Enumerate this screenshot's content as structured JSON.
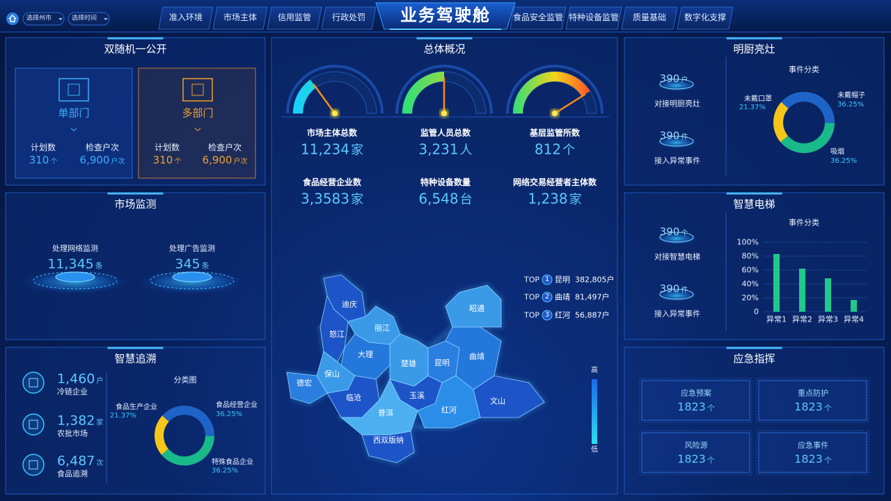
{
  "header": {
    "title": "业务驾驶舱",
    "filters": [
      "选择州市",
      "选择时间"
    ],
    "nav_left": [
      "准入环境",
      "市场主体",
      "信用监管",
      "行政处罚"
    ],
    "nav_right": [
      "食品安全监管",
      "特种设备监管",
      "质量基础",
      "数字化支撑"
    ]
  },
  "random_check": {
    "title": "双随机一公开",
    "cards": [
      {
        "name": "单部门",
        "stats": [
          {
            "label": "计划数",
            "value": "310",
            "unit": "个"
          },
          {
            "label": "检查户次",
            "value": "6,900",
            "unit": "户次"
          }
        ]
      },
      {
        "name": "多部门",
        "stats": [
          {
            "label": "计划数",
            "value": "310",
            "unit": "个"
          },
          {
            "label": "检查户次",
            "value": "6,900",
            "unit": "户次"
          }
        ]
      }
    ]
  },
  "market_monitor": {
    "title": "市场监测",
    "items": [
      {
        "label": "处理网络监测",
        "value": "11,345",
        "unit": "条"
      },
      {
        "label": "处理广告监测",
        "value": "345",
        "unit": "条"
      }
    ]
  },
  "trace": {
    "title": "智慧追溯",
    "items": [
      {
        "value": "1,460",
        "unit": "户",
        "label": "冷链企业"
      },
      {
        "value": "1,382",
        "unit": "家",
        "label": "农批市场"
      },
      {
        "value": "6,487",
        "unit": "次",
        "label": "食品追溯"
      }
    ],
    "chart": {
      "type": "donut",
      "title": "分类图",
      "categories": [
        "食品生产企业",
        "食品经营企业",
        "特殊食品企业"
      ],
      "values": [
        21.37,
        36.25,
        36.25
      ],
      "value_labels": [
        "21.37%",
        "36.25%",
        "36.25%"
      ],
      "colors": [
        "#f5c518",
        "#1e64c8",
        "#19b98a"
      ]
    }
  },
  "overview": {
    "title": "总体概况",
    "gauges": {
      "type": "gauge",
      "lim": [
        0,
        100
      ],
      "values": [
        30,
        50,
        82
      ]
    },
    "stats": [
      {
        "label": "市场主体总数",
        "value": "11,234",
        "unit": "家"
      },
      {
        "label": "监管人员总数",
        "value": "3,231",
        "unit": "人"
      },
      {
        "label": "基层监管所数",
        "value": "812",
        "unit": "个"
      },
      {
        "label": "食品经营企业数",
        "value": "3,3583",
        "unit": "家"
      },
      {
        "label": "特种设备数量",
        "value": "6,548",
        "unit": "台"
      },
      {
        "label": "网络交易经营者主体数",
        "value": "1,238",
        "unit": "家"
      }
    ],
    "top_label": "TOP",
    "top": [
      {
        "rank": "1",
        "city": "昆明",
        "value": "382,805户"
      },
      {
        "rank": "2",
        "city": "曲靖",
        "value": "81,497户"
      },
      {
        "rank": "3",
        "city": "红河",
        "value": "56,887户"
      }
    ],
    "map": {
      "regions": [
        "迪庆",
        "怒江",
        "丽江",
        "大理",
        "保山",
        "德宏",
        "临沧",
        "楚雄",
        "昆明",
        "曲靖",
        "昭通",
        "玉溪",
        "普洱",
        "红河",
        "文山",
        "西双版纳"
      ],
      "legend_high": "高",
      "legend_low": "低"
    }
  },
  "kitchen": {
    "title": "明厨亮灶",
    "items": [
      {
        "value": "390",
        "unit": "户",
        "label": "对接明厨亮灶"
      },
      {
        "value": "390",
        "unit": "件",
        "label": "接入异常事件"
      }
    ],
    "chart": {
      "type": "donut",
      "title": "事件分类",
      "categories": [
        "未戴口罩",
        "未戴帽子",
        "吸烟"
      ],
      "values": [
        21.37,
        36.25,
        36.25
      ],
      "value_labels": [
        "21.37%",
        "36.25%",
        "36.25%"
      ],
      "colors": [
        "#f5c518",
        "#1e64c8",
        "#19b98a"
      ]
    }
  },
  "elevator": {
    "title": "智慧电梯",
    "items": [
      {
        "value": "390",
        "unit": "个",
        "label": "对接智慧电梯"
      },
      {
        "value": "390",
        "unit": "件",
        "label": "接入异常事件"
      }
    ],
    "chart": {
      "type": "bar",
      "title": "事件分类",
      "categories": [
        "异常1",
        "异常2",
        "异常3",
        "异常4"
      ],
      "values": [
        83,
        62,
        48,
        17
      ],
      "color": "#1ec98a",
      "ylim": [
        0,
        100
      ],
      "yticks": [
        0,
        {
          "value": 20,
          "label": "20%"
        },
        {
          "value": 40,
          "label": "40%"
        },
        {
          "value": 60,
          "label": "60%"
        },
        {
          "value": 80,
          "label": "80%"
        },
        {
          "value": 100,
          "label": "100%"
        }
      ]
    }
  },
  "emergency": {
    "title": "应急指挥",
    "cards": [
      {
        "name": "应急预案",
        "value": "1823",
        "unit": "个"
      },
      {
        "name": "重点防护",
        "value": "1823",
        "unit": "个"
      },
      {
        "name": "风险源",
        "value": "1823",
        "unit": "个"
      },
      {
        "name": "应急事件",
        "value": "1823",
        "unit": "个"
      }
    ]
  }
}
